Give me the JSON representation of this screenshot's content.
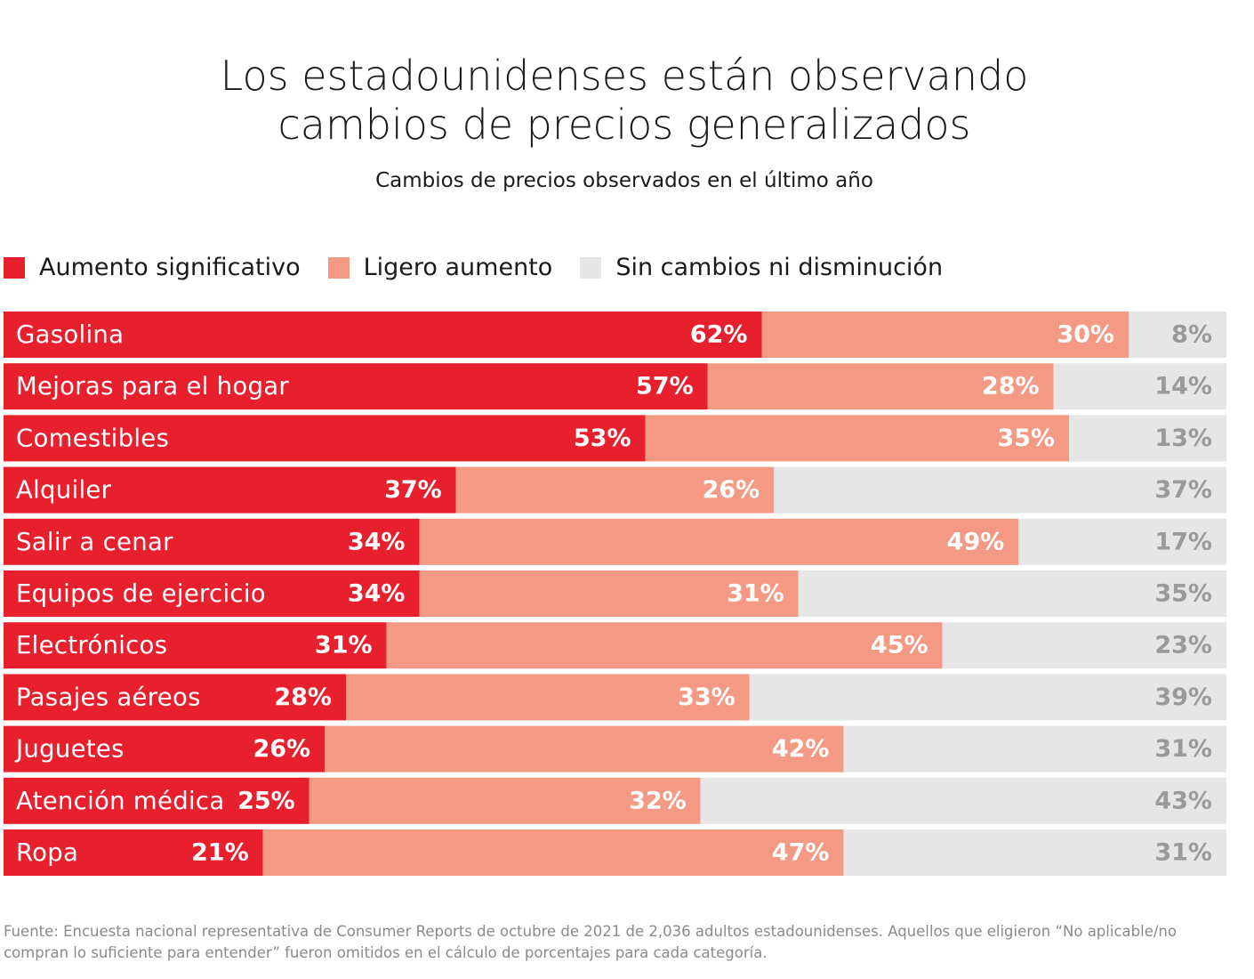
{
  "colors": {
    "significant": "#e8202e",
    "slight": "#f49a84",
    "none": "#e6e6e6",
    "label_light": "#ffffff",
    "label_gray": "#9a9a9a"
  },
  "chart_data": {
    "type": "bar",
    "orientation": "horizontal",
    "stacked": true,
    "title_lines": [
      "Los estadounidenses están observando",
      "cambios de precios generalizados"
    ],
    "subtitle": "Cambios de precios observados en el último año",
    "legend_placement": "top-left",
    "unit": "%",
    "categories": [
      "Gasolina",
      "Mejoras para el hogar",
      "Comestibles",
      "Alquiler",
      "Salir a cenar",
      "Equipos de ejercicio",
      "Electrónicos",
      "Pasajes aéreos",
      "Juguetes",
      "Atención médica",
      "Ropa"
    ],
    "series": [
      {
        "name": "Aumento significativo",
        "color": "#e8202e",
        "values": [
          62,
          57,
          53,
          37,
          34,
          34,
          31,
          28,
          26,
          25,
          21
        ]
      },
      {
        "name": "Ligero aumento",
        "color": "#f49a84",
        "values": [
          30,
          28,
          35,
          26,
          49,
          31,
          45,
          33,
          42,
          32,
          47
        ]
      },
      {
        "name": "Sin cambios ni disminución",
        "color": "#e6e6e6",
        "values": [
          8,
          14,
          13,
          37,
          17,
          35,
          23,
          39,
          31,
          43,
          31
        ]
      }
    ]
  },
  "footnote_lines": [
    "Fuente: Encuesta nacional representativa de Consumer Reports de octubre de 2021 de 2,036 adultos estadounidenses. Aquellos que eligieron “No aplicable/no",
    "compran lo suficiente para entender” fueron omitidos en el cálculo de porcentajes para cada categoría."
  ]
}
